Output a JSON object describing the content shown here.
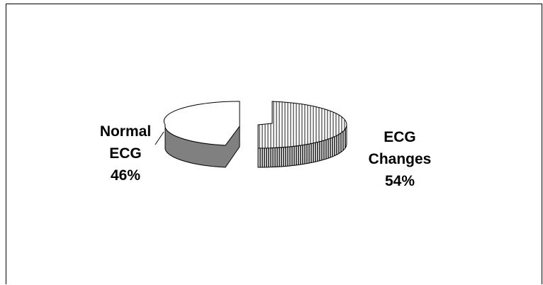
{
  "chart_data": {
    "type": "pie",
    "style": "3d-exploded",
    "title": "",
    "slices": [
      {
        "category": "Normal ECG",
        "value": 46,
        "label_lines": [
          "Normal",
          "ECG",
          "46%"
        ],
        "fill": "#ffffff",
        "side_fill": "#808080"
      },
      {
        "category": "ECG Changes",
        "value": 54,
        "label_lines": [
          "ECG",
          "Changes",
          "54%"
        ],
        "fill": "vertical-hatch",
        "side_fill": "dense-vertical-hatch"
      }
    ],
    "legend": "none"
  }
}
